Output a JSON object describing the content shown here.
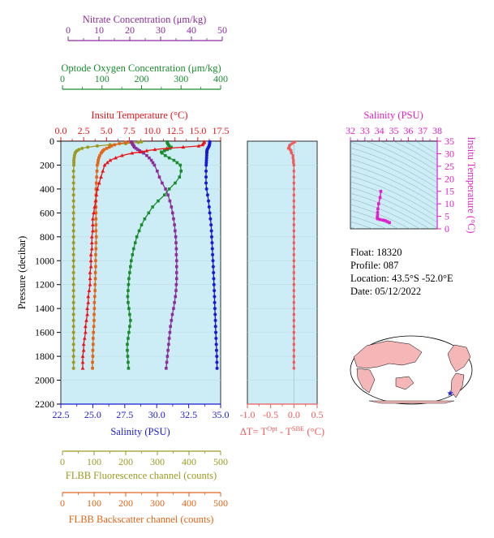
{
  "colors": {
    "nitrate": "#8B2D9B",
    "oxygen": "#1A8C2E",
    "temperature": "#E8141A",
    "salinity": "#1A1AD6",
    "fluorescence": "#9C9A23",
    "backscatter": "#E0661A",
    "delta_t": "#F05A5A",
    "theta_s": "#E020C8",
    "plot_bg": "#CDEDF6",
    "map_land": "#F4B6B6",
    "map_sea": "#ffffff"
  },
  "axes": {
    "nitrate": {
      "label": "Nitrate Concentration (μm/kg)",
      "min": 0,
      "max": 50,
      "ticks": [
        "0",
        "10",
        "20",
        "30",
        "40",
        "50"
      ]
    },
    "oxygen": {
      "label": "Optode Oxygen Concentration (μm/kg)",
      "min": 0,
      "max": 400,
      "ticks": [
        "0",
        "100",
        "200",
        "300",
        "400"
      ]
    },
    "temperature": {
      "label": "Insitu Temperature (°C)",
      "min": 0,
      "max": 17.5,
      "ticks": [
        "0.0",
        "2.5",
        "5.0",
        "7.5",
        "10.0",
        "12.5",
        "15.0",
        "17.5"
      ]
    },
    "salinity": {
      "label": "Salinity (PSU)",
      "min": 22.5,
      "max": 35,
      "ticks": [
        "22.5",
        "25.0",
        "27.5",
        "30.0",
        "32.5",
        "35.0"
      ]
    },
    "pressure": {
      "label": "Pressure (decibar)",
      "min": 0,
      "max": 2200,
      "ticks": [
        "0",
        "200",
        "400",
        "600",
        "800",
        "1000",
        "1200",
        "1400",
        "1600",
        "1800",
        "2000",
        "2200"
      ]
    },
    "fluorescence": {
      "label": "FLBB Fluorescence channel (counts)",
      "min": 0,
      "max": 500,
      "ticks": [
        "0",
        "100",
        "200",
        "300",
        "400",
        "500"
      ]
    },
    "backscatter": {
      "label": "FLBB Backscatter channel (counts)",
      "min": 0,
      "max": 500,
      "ticks": [
        "0",
        "100",
        "200",
        "300",
        "400",
        "500"
      ]
    },
    "delta_t": {
      "label_prefix": "ΔT= T",
      "sup1": "Opt",
      "label_mid": " - T",
      "sup2": "SBE",
      "label_suffix": " (°C)",
      "min": -1.0,
      "max": 0.5,
      "ticks": [
        "-1.0",
        "-0.5",
        "0.0",
        "0.5"
      ]
    },
    "ts_salinity": {
      "label": "Salinity (PSU)",
      "min": 32,
      "max": 38,
      "ticks": [
        "32",
        "33",
        "34",
        "35",
        "36",
        "37",
        "38"
      ]
    },
    "ts_temperature": {
      "label": "Insitu Temperature (°C)",
      "min": 0,
      "max": 35,
      "ticks": [
        "0",
        "5",
        "10",
        "15",
        "20",
        "25",
        "30",
        "35"
      ]
    }
  },
  "info": {
    "float": "Float:  18320",
    "profile": "Profile:  087",
    "location": "Location:  43.5°S  -52.0°E",
    "date": "Date:  05/12/2022"
  },
  "chart_data": {
    "type": "line",
    "pressure": [
      5,
      10,
      20,
      30,
      40,
      50,
      60,
      70,
      80,
      90,
      100,
      120,
      140,
      160,
      180,
      200,
      250,
      300,
      350,
      400,
      450,
      500,
      550,
      600,
      650,
      700,
      750,
      800,
      850,
      900,
      950,
      1000,
      1050,
      1100,
      1150,
      1200,
      1250,
      1300,
      1350,
      1400,
      1450,
      1500,
      1550,
      1600,
      1650,
      1700,
      1750,
      1800,
      1850,
      1900
    ],
    "series": [
      {
        "name": "Insitu Temperature (°C)",
        "values": [
          15.7,
          15.7,
          15.6,
          15.5,
          15.1,
          13.4,
          11.6,
          10.3,
          9.4,
          8.7,
          7.8,
          6.7,
          6.0,
          5.4,
          5.1,
          4.8,
          4.6,
          4.4,
          4.2,
          4.0,
          3.9,
          3.8,
          3.7,
          3.6,
          3.5,
          3.5,
          3.5,
          3.4,
          3.4,
          3.4,
          3.3,
          3.3,
          3.3,
          3.2,
          3.2,
          3.2,
          3.1,
          3.0,
          3.0,
          2.9,
          2.9,
          2.8,
          2.7,
          2.7,
          2.6,
          2.5,
          2.5,
          2.4,
          2.4,
          2.4
        ]
      },
      {
        "name": "Salinity (PSU)",
        "values": [
          34.15,
          34.15,
          34.14,
          34.12,
          34.1,
          34.05,
          34.0,
          33.95,
          33.93,
          33.92,
          33.92,
          33.91,
          33.9,
          33.89,
          33.88,
          33.87,
          33.86,
          33.86,
          33.86,
          33.9,
          33.98,
          34.05,
          34.1,
          34.15,
          34.2,
          34.25,
          34.28,
          34.3,
          34.33,
          34.35,
          34.37,
          34.4,
          34.42,
          34.44,
          34.46,
          34.48,
          34.5,
          34.52,
          34.53,
          34.55,
          34.57,
          34.59,
          34.6,
          34.62,
          34.64,
          34.66,
          34.68,
          34.7,
          34.71,
          34.72
        ]
      },
      {
        "name": "Optode Oxygen Concentration (μm/kg)",
        "values": [
          265,
          265,
          266,
          268,
          270,
          275,
          272,
          265,
          258,
          250,
          252,
          260,
          270,
          282,
          290,
          298,
          300,
          296,
          285,
          270,
          258,
          242,
          228,
          218,
          208,
          200,
          194,
          188,
          184,
          180,
          177,
          174,
          172,
          170,
          168,
          167,
          166,
          165,
          166,
          168,
          170,
          172,
          170,
          168,
          166,
          164,
          164,
          165,
          166,
          167
        ]
      },
      {
        "name": "Nitrate Concentration (μm/kg)",
        "values": [
          20.5,
          20.6,
          20.8,
          21.0,
          21.3,
          21.5,
          22.0,
          22.6,
          23.2,
          23.8,
          24.5,
          25.5,
          26.3,
          27.0,
          27.5,
          28.0,
          28.9,
          29.6,
          30.5,
          31.6,
          32.4,
          33.0,
          33.5,
          33.9,
          34.2,
          34.5,
          34.7,
          34.9,
          35.0,
          35.1,
          35.1,
          35.2,
          35.2,
          35.2,
          35.2,
          35.1,
          35.0,
          34.8,
          34.5,
          34.2,
          33.8,
          33.5,
          33.2,
          33.0,
          32.8,
          32.6,
          32.4,
          32.2,
          32.0,
          31.8
        ]
      },
      {
        "name": "FLBB Fluorescence channel (counts)",
        "values": [
          250,
          240,
          200,
          150,
          110,
          80,
          62,
          52,
          46,
          42,
          40,
          38,
          37,
          36,
          36,
          36,
          35,
          35,
          35,
          35,
          35,
          35,
          35,
          35,
          35,
          35,
          35,
          35,
          35,
          35,
          35,
          35,
          35,
          35,
          35,
          35,
          35,
          35,
          35,
          35,
          35,
          35,
          35,
          35,
          35,
          35,
          35,
          35,
          35,
          35
        ]
      },
      {
        "name": "FLBB Backscatter channel (counts)",
        "values": [
          215,
          200,
          180,
          165,
          155,
          148,
          140,
          132,
          128,
          125,
          122,
          118,
          115,
          113,
          112,
          110,
          109,
          108,
          107,
          106,
          106,
          106,
          106,
          106,
          106,
          106,
          106,
          107,
          106,
          106,
          105,
          105,
          105,
          104,
          104,
          103,
          103,
          102,
          101,
          101,
          100,
          100,
          99,
          98,
          97,
          97,
          96,
          96,
          95,
          95
        ]
      },
      {
        "name": "ΔT",
        "values": [
          0.02,
          0.0,
          -0.04,
          -0.08,
          -0.1,
          -0.1,
          -0.12,
          -0.08,
          -0.06,
          -0.06,
          -0.05,
          -0.02,
          -0.02,
          -0.01,
          -0.01,
          0.0,
          0.0,
          0.0,
          0.0,
          0.0,
          0.0,
          0.0,
          0.0,
          0.0,
          0.0,
          0.0,
          0.0,
          0.0,
          0.0,
          0.0,
          0.0,
          0.0,
          0.0,
          0.0,
          0.0,
          0.0,
          0.0,
          0.0,
          0.0,
          0.0,
          0.0,
          0.0,
          0.0,
          0.0,
          0.0,
          0.0,
          0.0,
          0.0,
          0.0,
          0.0
        ]
      }
    ],
    "ts_points": [
      {
        "s": 34.1,
        "t": 15.0
      },
      {
        "s": 34.05,
        "t": 12.5
      },
      {
        "s": 33.95,
        "t": 10.0
      },
      {
        "s": 33.9,
        "t": 8.0
      },
      {
        "s": 33.88,
        "t": 6.5
      },
      {
        "s": 33.87,
        "t": 5.2
      },
      {
        "s": 33.86,
        "t": 4.6
      },
      {
        "s": 33.86,
        "t": 4.2
      },
      {
        "s": 33.9,
        "t": 4.0
      },
      {
        "s": 34.05,
        "t": 3.7
      },
      {
        "s": 34.25,
        "t": 3.5
      },
      {
        "s": 34.4,
        "t": 3.3
      },
      {
        "s": 34.55,
        "t": 2.9
      },
      {
        "s": 34.7,
        "t": 2.5
      }
    ],
    "map_marker": {
      "lat": -43.5,
      "lon": -52.0
    }
  }
}
